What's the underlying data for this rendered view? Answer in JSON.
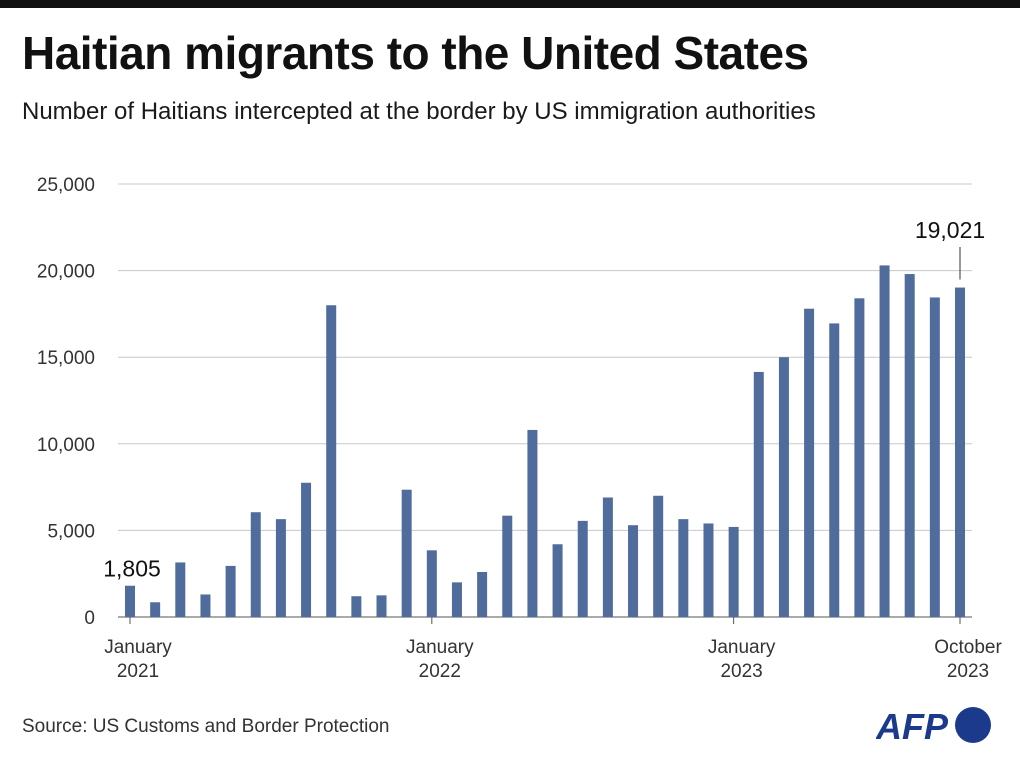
{
  "header": {
    "title": "Haitian migrants to the United States",
    "subtitle": "Number of Haitians intercepted at the border by US immigration authorities"
  },
  "footer": {
    "source": "Source: US Customs and Border Protection",
    "logo_text": "AFP"
  },
  "colors": {
    "bar": "#4f6c9d",
    "grid": "#c8c8c8",
    "logo": "#1b3a8c"
  },
  "chart_data": {
    "type": "bar",
    "title": "Haitian migrants to the United States",
    "subtitle": "Number of Haitians intercepted at the border by US immigration authorities",
    "xlabel": "",
    "ylabel": "",
    "ylim": [
      0,
      25000
    ],
    "yticks": [
      "0",
      "5,000",
      "10,000",
      "15,000",
      "20,000",
      "25,000"
    ],
    "grid": true,
    "x_tick_labels": [
      {
        "index": 0,
        "lines": [
          "January",
          "2021"
        ]
      },
      {
        "index": 12,
        "lines": [
          "January",
          "2022"
        ]
      },
      {
        "index": 24,
        "lines": [
          "January",
          "2023"
        ]
      },
      {
        "index": 33,
        "lines": [
          "October",
          "2023"
        ]
      }
    ],
    "categories": [
      "2021-01",
      "2021-02",
      "2021-03",
      "2021-04",
      "2021-05",
      "2021-06",
      "2021-07",
      "2021-08",
      "2021-09",
      "2021-10",
      "2021-11",
      "2021-12",
      "2022-01",
      "2022-02",
      "2022-03",
      "2022-04",
      "2022-05",
      "2022-06",
      "2022-07",
      "2022-08",
      "2022-09",
      "2022-10",
      "2022-11",
      "2022-12",
      "2023-01",
      "2023-02",
      "2023-03",
      "2023-04",
      "2023-05",
      "2023-06",
      "2023-07",
      "2023-08",
      "2023-09",
      "2023-10"
    ],
    "values": [
      1805,
      850,
      3150,
      1300,
      2950,
      6050,
      5650,
      7750,
      18000,
      1200,
      1250,
      7350,
      3850,
      2000,
      2600,
      5850,
      10800,
      4200,
      5550,
      6900,
      5300,
      7000,
      5650,
      5400,
      5200,
      14150,
      15000,
      17800,
      16950,
      18400,
      20300,
      19800,
      18450,
      19021
    ],
    "annotations": [
      {
        "index": 0,
        "text": "1,805"
      },
      {
        "index": 33,
        "text": "19,021"
      }
    ]
  }
}
